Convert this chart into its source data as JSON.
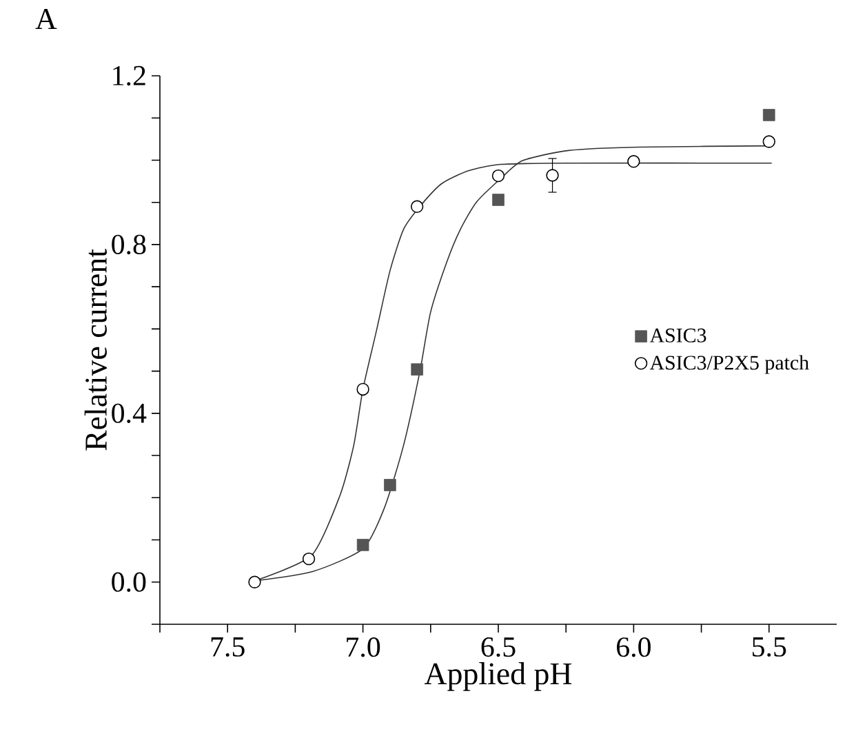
{
  "chart_data": {
    "type": "scatter",
    "xlabel": "Applied pH",
    "ylabel": "Relative current",
    "annotations": [
      "A"
    ],
    "xlim": [
      7.75,
      5.25
    ],
    "ylim": [
      -0.1,
      1.2
    ],
    "xticks": [
      {
        "value": 7.75,
        "label": null
      },
      7.5,
      {
        "value": 7.25,
        "label": null
      },
      {
        "value": 7.0,
        "label": "7.0"
      },
      {
        "value": 6.75,
        "label": null
      },
      6.5,
      {
        "value": 6.25,
        "label": null
      },
      {
        "value": 6.0,
        "label": "6.0"
      },
      {
        "value": 5.75,
        "label": null
      },
      5.5
    ],
    "yticks": [
      {
        "value": -0.1,
        "label": null
      },
      {
        "value": 0.0,
        "label": "0.0"
      },
      {
        "value": 0.1,
        "label": null
      },
      {
        "value": 0.2,
        "label": null
      },
      {
        "value": 0.3,
        "label": null
      },
      0.4,
      {
        "value": 0.5,
        "label": null
      },
      {
        "value": 0.6,
        "label": null
      },
      {
        "value": 0.7,
        "label": null
      },
      0.8,
      {
        "value": 0.9,
        "label": null
      },
      {
        "value": 1.0,
        "label": null
      },
      {
        "value": 1.1,
        "label": null
      },
      1.2
    ],
    "legend": "right",
    "series": [
      {
        "type": "line",
        "color": "#333333",
        "marker": "none",
        "x": [
          7.4,
          7.19,
          7.085,
          7.034,
          7.0,
          6.95,
          6.9,
          6.85,
          6.79,
          6.71,
          6.61,
          6.49,
          6.24,
          5.49
        ],
        "values": [
          0.003,
          0.063,
          0.205,
          0.324,
          0.457,
          0.596,
          0.738,
          0.836,
          0.89,
          0.944,
          0.975,
          0.99,
          0.993,
          0.993
        ]
      },
      {
        "type": "line",
        "color": "#333333",
        "marker": "none",
        "x": [
          7.4,
          7.186,
          7.0,
          6.92,
          6.85,
          6.79,
          6.75,
          6.69,
          6.64,
          6.58,
          6.49,
          6.41,
          6.24,
          5.98,
          5.49
        ],
        "values": [
          0.003,
          0.025,
          0.079,
          0.177,
          0.324,
          0.498,
          0.64,
          0.759,
          0.836,
          0.901,
          0.957,
          0.999,
          1.023,
          1.031,
          1.034
        ]
      },
      {
        "name": "ASIC3",
        "color": "#555555",
        "marker": "square",
        "x": [
          7.0,
          6.9,
          6.8,
          6.5,
          5.5
        ],
        "values": [
          0.088,
          0.23,
          0.504,
          0.906,
          1.107
        ]
      },
      {
        "name": "ASIC3/P2X5 patch",
        "color": "#000000",
        "marker": "circle",
        "x": [
          7.4,
          7.2,
          7.0,
          6.8,
          6.5,
          6.3,
          6.0,
          5.5
        ],
        "values": [
          0.0,
          0.055,
          0.457,
          0.89,
          0.963,
          0.964,
          0.997,
          1.044
        ],
        "errors": [
          null,
          null,
          null,
          null,
          null,
          0.04,
          null,
          null
        ]
      }
    ]
  }
}
